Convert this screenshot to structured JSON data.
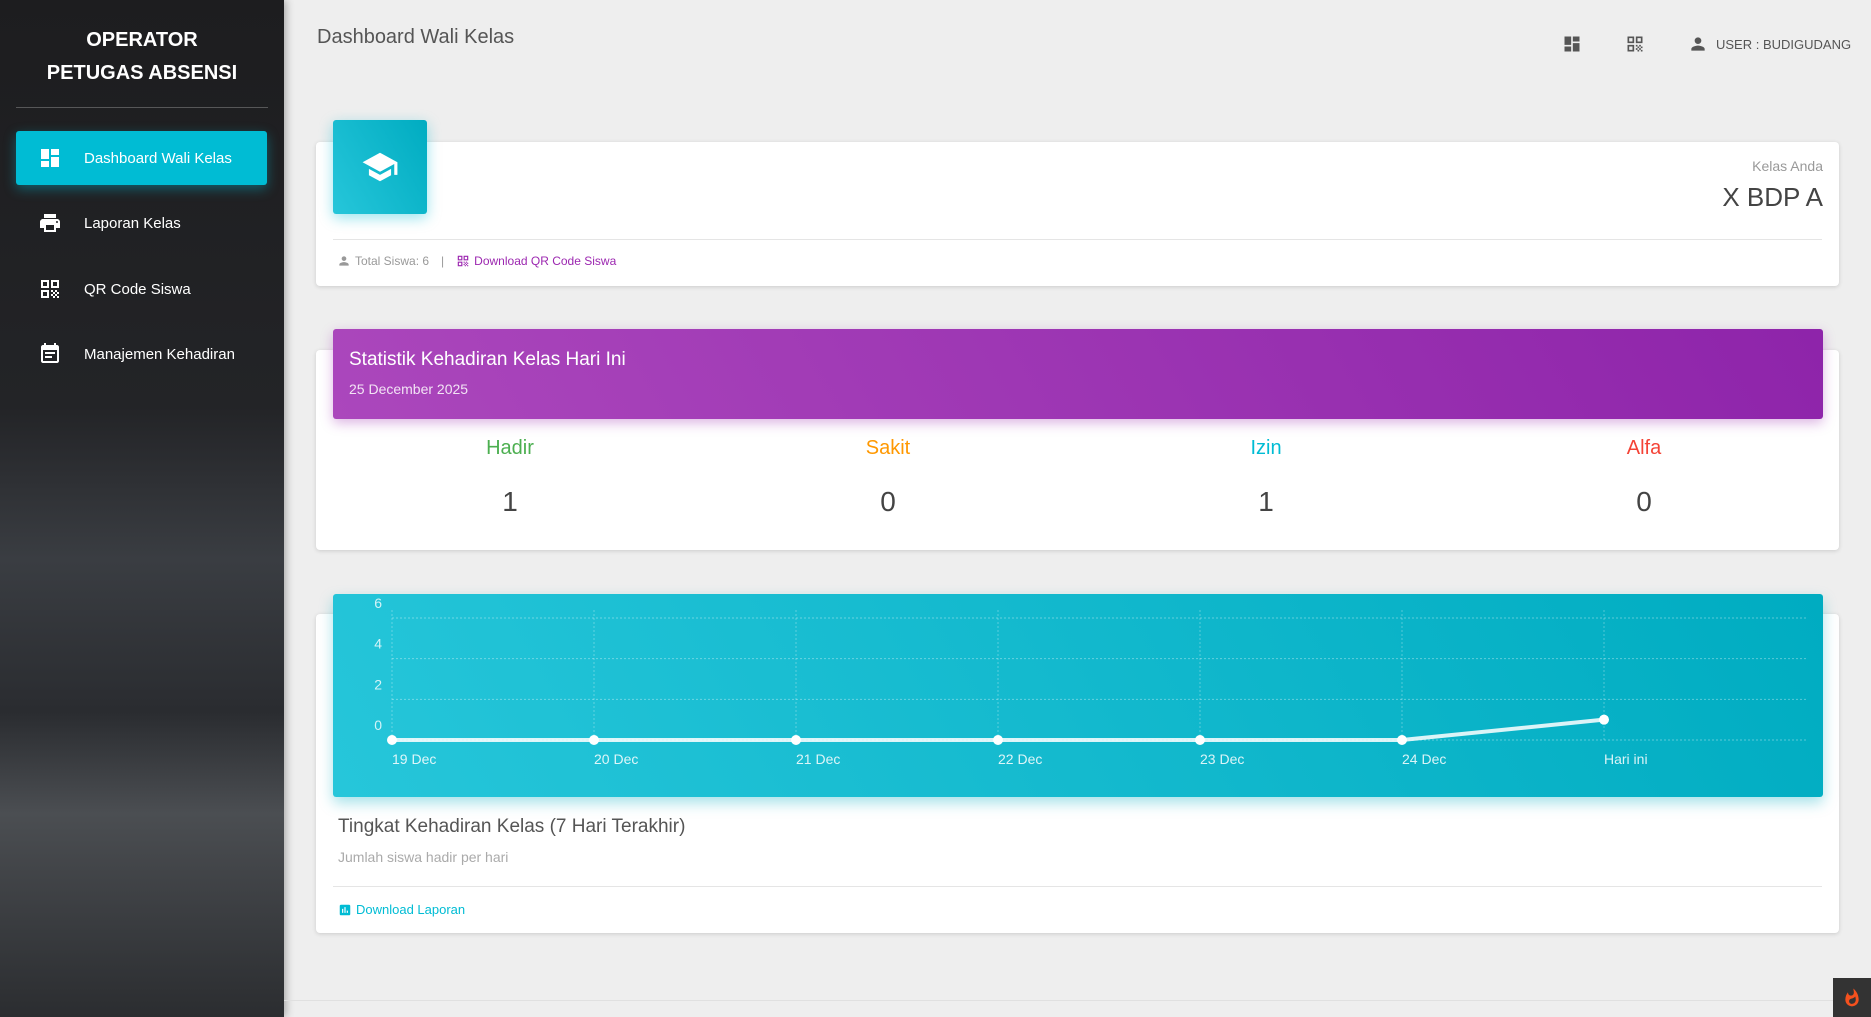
{
  "sidebar": {
    "brand_line1": "OPERATOR",
    "brand_line2": "PETUGAS ABSENSI",
    "items": [
      {
        "label": "Dashboard Wali Kelas",
        "icon": "dashboard-icon",
        "active": true
      },
      {
        "label": "Laporan Kelas",
        "icon": "printer-icon"
      },
      {
        "label": "QR Code Siswa",
        "icon": "qr-code-icon"
      },
      {
        "label": "Manajemen Kehadiran",
        "icon": "calendar-icon"
      }
    ]
  },
  "header": {
    "title": "Dashboard Wali Kelas",
    "user": "USER : BUDIGUDANG"
  },
  "class_card": {
    "label": "Kelas Anda",
    "value": "X BDP A",
    "total": "Total Siswa: 6",
    "sep": "|",
    "download_qr": "Download QR Code Siswa"
  },
  "stats": {
    "title": "Statistik Kehadiran Kelas Hari Ini",
    "date": "25 December 2025",
    "items": [
      {
        "label": "Hadir",
        "value": "1",
        "color": "#4caf50"
      },
      {
        "label": "Sakit",
        "value": "0",
        "color": "#ff9800"
      },
      {
        "label": "Izin",
        "value": "1",
        "color": "#00bcd4"
      },
      {
        "label": "Alfa",
        "value": "0",
        "color": "#f44336"
      }
    ]
  },
  "chart_card": {
    "title": "Tingkat Kehadiran Kelas (7 Hari Terakhir)",
    "subtitle": "Jumlah siswa hadir per hari",
    "download": "Download Laporan"
  },
  "chart_data": {
    "type": "line",
    "categories": [
      "19 Dec",
      "20 Dec",
      "21 Dec",
      "22 Dec",
      "23 Dec",
      "24 Dec",
      "Hari ini"
    ],
    "values": [
      0,
      0,
      0,
      0,
      0,
      0,
      1
    ],
    "yticks": [
      "6",
      "4",
      "2",
      "0"
    ],
    "ylim": [
      0,
      6
    ],
    "grid": true
  },
  "colors": {
    "accent": "#00bcd4",
    "purple": "#9c27b0"
  }
}
